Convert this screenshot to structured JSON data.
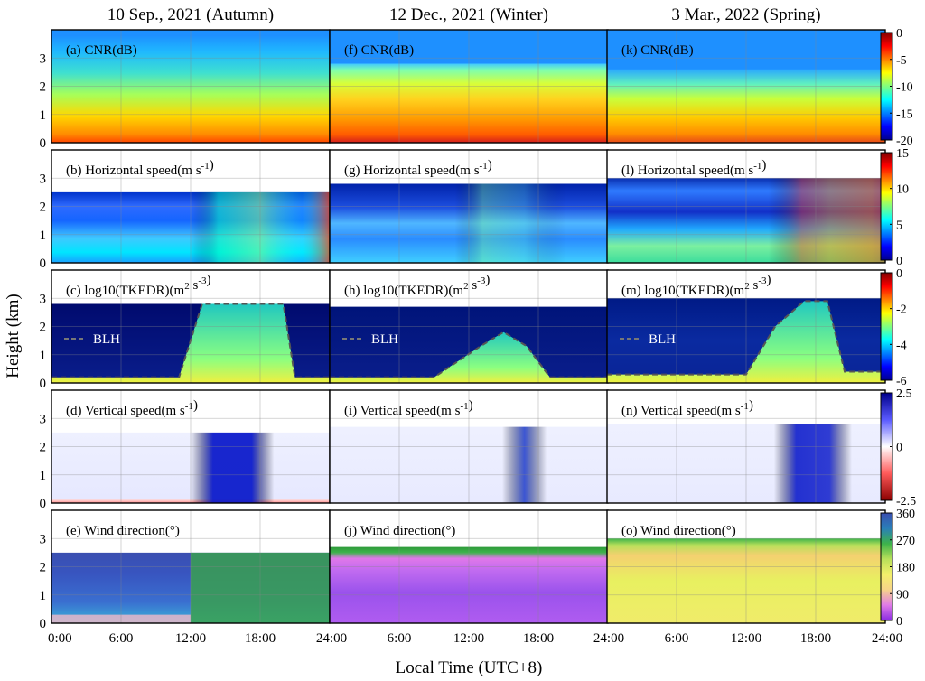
{
  "column_titles": [
    "10 Sep., 2021 (Autumn)",
    "12 Dec., 2021 (Winter)",
    "3 Mar., 2022 (Spring)"
  ],
  "y_axis_label": "Height (km)",
  "x_axis_label": "Local Time (UTC+8)",
  "x_tick_labels": [
    "0:00",
    "6:00",
    "12:00",
    "18:00",
    "24:00"
  ],
  "y_tick_labels": [
    "0",
    "1",
    "2",
    "3"
  ],
  "blh_label": "BLH",
  "colors": {
    "jet": [
      "#00008f",
      "#0000ff",
      "#0080ff",
      "#00ffff",
      "#80ff80",
      "#ffff00",
      "#ff8000",
      "#ff0000",
      "#800000"
    ],
    "diverging": [
      "#8b0000",
      "#ff5a5a",
      "#ffffff",
      "#5a5aff",
      "#00008b"
    ],
    "wind_direction": [
      "#8a2be2",
      "#e07be8",
      "#f6d38a",
      "#f4f06a",
      "#b8e05a",
      "#3db34a",
      "#2a7fb8",
      "#3a4fb0"
    ]
  },
  "chart_data": {
    "type": "heatmap",
    "x_range": [
      0,
      24
    ],
    "y_range": [
      0,
      4
    ],
    "x_ticks": [
      0,
      6,
      12,
      18,
      24
    ],
    "y_ticks": [
      0,
      1,
      2,
      3
    ],
    "rows": [
      {
        "variable": "CNR",
        "colorbar": {
          "colormap": "jet",
          "range": [
            -20,
            0
          ],
          "ticks": [
            "0",
            "-5",
            "-10",
            "-15",
            "-20"
          ]
        },
        "panels": [
          {
            "label": "(a) CNR(dB)",
            "top_km": 3.8
          },
          {
            "label": "(f) CNR(dB)",
            "top_km": 2.8
          },
          {
            "label": "(k) CNR(dB)",
            "top_km": 2.6
          }
        ]
      },
      {
        "variable": "Horizontal speed",
        "colorbar": {
          "colormap": "jet",
          "range": [
            0,
            15
          ],
          "ticks": [
            "15",
            "10",
            "5",
            "0"
          ]
        },
        "panels": [
          {
            "label": "(b) Horizontal speed(m s",
            "unit_sup": "-1",
            "label_end": ")",
            "top_km": 2.5
          },
          {
            "label": "(g) Horizontal speed(m s",
            "unit_sup": "-1",
            "label_end": ")",
            "top_km": 2.8
          },
          {
            "label": "(l) Horizontal speed(m s",
            "unit_sup": "-1",
            "label_end": ")",
            "top_km": 3.0
          }
        ]
      },
      {
        "variable": "log10(TKEDR)",
        "colorbar": {
          "colormap": "jet",
          "range": [
            -6,
            0
          ],
          "ticks": [
            "0",
            "-2",
            "-4",
            "-6"
          ]
        },
        "panels": [
          {
            "label": "(c) log10(TKEDR)(m",
            "unit_sup": "2",
            "label_mid": " s",
            "unit_sup2": "-3",
            "label_end": ")",
            "top_km": 2.8,
            "blh_km": [
              [
                0,
                0.2
              ],
              [
                11,
                0.2
              ],
              [
                13,
                2.8
              ],
              [
                20,
                2.8
              ],
              [
                21,
                0.2
              ],
              [
                24,
                0.2
              ]
            ]
          },
          {
            "label": "(h) log10(TKEDR)(m",
            "unit_sup": "2",
            "label_mid": " s",
            "unit_sup2": "-3",
            "label_end": ")",
            "top_km": 2.7,
            "blh_km": [
              [
                0,
                0.2
              ],
              [
                9,
                0.2
              ],
              [
                13,
                1.3
              ],
              [
                15,
                1.8
              ],
              [
                17,
                1.3
              ],
              [
                19,
                0.2
              ],
              [
                24,
                0.2
              ]
            ]
          },
          {
            "label": "(m) log10(TKEDR)(m",
            "unit_sup": "2",
            "label_mid": " s",
            "unit_sup2": "-3",
            "label_end": ")",
            "top_km": 3.0,
            "blh_km": [
              [
                0,
                0.3
              ],
              [
                12,
                0.3
              ],
              [
                14.5,
                2.0
              ],
              [
                17,
                2.9
              ],
              [
                19,
                2.9
              ],
              [
                20.5,
                0.4
              ],
              [
                24,
                0.4
              ]
            ]
          }
        ]
      },
      {
        "variable": "Vertical speed",
        "colorbar": {
          "colormap": "diverging",
          "range": [
            -2.5,
            2.5
          ],
          "ticks": [
            "2.5",
            "0",
            "-2.5"
          ]
        },
        "panels": [
          {
            "label": "(d) Vertical speed(m s",
            "unit_sup": "-1",
            "label_end": ")",
            "top_km": 2.5
          },
          {
            "label": "(i) Vertical speed(m s",
            "unit_sup": "-1",
            "label_end": ")",
            "top_km": 2.7
          },
          {
            "label": "(n) Vertical speed(m s",
            "unit_sup": "-1",
            "label_end": ")",
            "top_km": 2.8
          }
        ]
      },
      {
        "variable": "Wind direction",
        "colorbar": {
          "colormap": "wind_direction",
          "range": [
            0,
            360
          ],
          "ticks": [
            "360",
            "270",
            "180",
            "90",
            "0"
          ]
        },
        "panels": [
          {
            "label": "(e) Wind direction(°)",
            "top_km": 2.5
          },
          {
            "label": "(j) Wind direction(°)",
            "top_km": 2.7
          },
          {
            "label": "(o) Wind direction(°)",
            "top_km": 3.0
          }
        ]
      }
    ]
  }
}
